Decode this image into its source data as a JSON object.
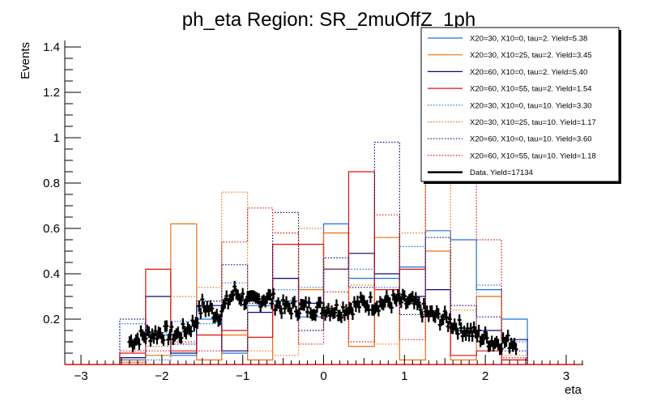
{
  "chart_data": {
    "type": "line",
    "title": "ph_eta Region: SR_2muOffZ_1ph",
    "xlabel": "eta",
    "ylabel": "Events",
    "xlim": [
      -3.0,
      3.0
    ],
    "ylim": [
      0.0,
      1.42
    ],
    "xticks": [
      -3,
      -2,
      -1,
      0,
      1,
      2,
      3
    ],
    "xtick_labels": [
      "−3",
      "−2",
      "−1",
      "0",
      "1",
      "2",
      "3"
    ],
    "yticks": [
      0.2,
      0.4,
      0.6,
      0.8,
      1.0,
      1.2,
      1.4
    ],
    "ytick_labels": [
      "0.2",
      "0.4",
      "0.6",
      "0.8",
      "1",
      "1.2",
      "1.4"
    ],
    "legend_position": "top-right",
    "bin_edges": [
      -2.52,
      -2.2,
      -1.89,
      -1.57,
      -1.26,
      -0.94,
      -0.63,
      -0.31,
      0.0,
      0.31,
      0.63,
      0.94,
      1.26,
      1.57,
      1.89,
      2.2,
      2.52
    ],
    "series": [
      {
        "name": "X20=30, X10=0, tau=2. Yield=5.38",
        "color": "#1f6fe0",
        "style": "solid",
        "values": [
          0.02,
          0.13,
          0.04,
          0.2,
          0.05,
          0.26,
          0.28,
          0.21,
          0.62,
          0.38,
          0.38,
          0.43,
          0.59,
          0.55,
          0.33,
          0.2
        ]
      },
      {
        "name": "X20=30, X10=25, tau=2. Yield=3.45",
        "color": "#f07010",
        "style": "solid",
        "values": [
          0.01,
          0.04,
          0.62,
          0.02,
          0.13,
          0.02,
          0.38,
          0.33,
          0.58,
          0.08,
          0.56,
          0.02,
          0.5,
          0.02,
          0.3,
          0.02
        ]
      },
      {
        "name": "X20=60, X10=0, tau=2. Yield=5.40",
        "color": "#0a0a7a",
        "style": "solid",
        "values": [
          0.03,
          0.3,
          0.05,
          0.26,
          0.06,
          0.23,
          0.38,
          0.27,
          0.42,
          0.49,
          0.4,
          0.3,
          0.33,
          0.15,
          0.15,
          0.11
        ]
      },
      {
        "name": "X20=60, X10=55, tau=2. Yield=1.54",
        "color": "#e01010",
        "style": "solid",
        "values": [
          0.05,
          0.42,
          0.06,
          0.13,
          0.15,
          0.12,
          0.53,
          0.53,
          0.42,
          0.85,
          0.33,
          0.42,
          0.21,
          0.04,
          0.06,
          0.02
        ]
      },
      {
        "name": "X20=30, X10=0, tau=10. Yield=3.30",
        "color": "#1f6fe0",
        "style": "dotted",
        "values": [
          0.18,
          0.02,
          0.19,
          0.18,
          0.36,
          0.3,
          0.33,
          0.34,
          0.42,
          0.42,
          0.34,
          0.52,
          0.21,
          0.16,
          0.35,
          0.1
        ]
      },
      {
        "name": "X20=30, X10=25, tau=10. Yield=1.17",
        "color": "#f07010",
        "style": "dotted",
        "values": [
          0.02,
          0.08,
          0.3,
          0.34,
          0.76,
          0.06,
          0.04,
          0.6,
          0.26,
          0.35,
          0.09,
          0.58,
          1.49,
          0.24,
          0.3,
          0.04
        ]
      },
      {
        "name": "X20=60, X10=0, tau=10. Yield=3.60",
        "color": "#0a0a7a",
        "style": "dotted",
        "values": [
          0.2,
          0.14,
          0.09,
          0.28,
          0.44,
          0.27,
          0.67,
          0.15,
          0.47,
          0.34,
          0.98,
          0.22,
          0.56,
          0.26,
          0.21,
          0.06
        ]
      },
      {
        "name": "X20=60, X10=55, tau=10. Yield=1.18",
        "color": "#e01010",
        "style": "dotted",
        "values": [
          0.06,
          0.06,
          0.1,
          0.06,
          0.54,
          0.69,
          0.58,
          0.09,
          0.32,
          0.1,
          0.66,
          0.11,
          0.96,
          1.52,
          0.55,
          0.03
        ]
      }
    ],
    "data_series": {
      "name": "Data. Yield=17134",
      "color": "#000000",
      "x_range": [
        -2.4,
        2.4
      ],
      "shape_points": [
        [
          -2.4,
          0.1
        ],
        [
          -2.2,
          0.13
        ],
        [
          -2.0,
          0.14
        ],
        [
          -1.8,
          0.13
        ],
        [
          -1.6,
          0.18
        ],
        [
          -1.5,
          0.26
        ],
        [
          -1.3,
          0.22
        ],
        [
          -1.1,
          0.32
        ],
        [
          -0.9,
          0.27
        ],
        [
          -0.7,
          0.3
        ],
        [
          -0.5,
          0.25
        ],
        [
          -0.3,
          0.25
        ],
        [
          0.0,
          0.25
        ],
        [
          0.2,
          0.24
        ],
        [
          0.5,
          0.27
        ],
        [
          0.7,
          0.27
        ],
        [
          0.9,
          0.28
        ],
        [
          1.1,
          0.27
        ],
        [
          1.3,
          0.22
        ],
        [
          1.5,
          0.2
        ],
        [
          1.7,
          0.16
        ],
        [
          1.9,
          0.13
        ],
        [
          2.1,
          0.1
        ],
        [
          2.3,
          0.1
        ]
      ]
    }
  }
}
